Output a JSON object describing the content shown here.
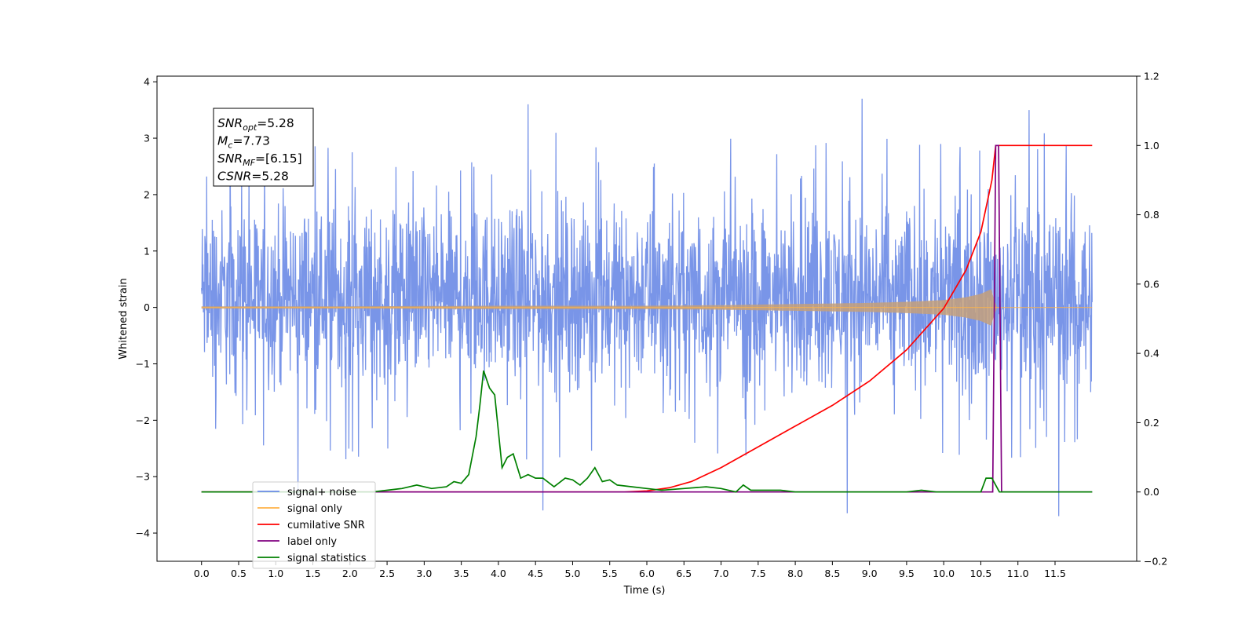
{
  "chart_data": {
    "type": "line",
    "xlabel": "Time (s)",
    "ylabel": "Whitened strain",
    "xlim": [
      -0.6,
      12.6
    ],
    "ylim": [
      -4.5,
      4.1
    ],
    "y2lim": [
      -0.2,
      1.2
    ],
    "x_ticks": [
      "0.0",
      "0.5",
      "1.0",
      "1.5",
      "2.0",
      "2.5",
      "3.0",
      "3.5",
      "4.0",
      "4.5",
      "5.0",
      "5.5",
      "6.0",
      "6.5",
      "7.0",
      "7.5",
      "8.0",
      "8.5",
      "9.0",
      "9.5",
      "10.0",
      "10.5",
      "11.0",
      "11.5"
    ],
    "y_ticks": [
      "4",
      "3",
      "2",
      "1",
      "0",
      "−1",
      "−2",
      "−3",
      "−4"
    ],
    "y2_ticks": [
      "1.2",
      "1.0",
      "0.8",
      "0.6",
      "0.4",
      "0.2",
      "0.0",
      "−0.2"
    ],
    "legend_position": "lower-left",
    "series": [
      {
        "name": "signal+ noise",
        "axis": "left",
        "color": "#6a8ae6",
        "style": "noise",
        "x_range": [
          0.0,
          12.0
        ],
        "typical_range": [
          -1.8,
          2.2
        ],
        "extrema": [
          [
            4.4,
            3.6
          ],
          [
            8.9,
            3.7
          ],
          [
            11.15,
            3.5
          ],
          [
            11.55,
            -3.7
          ],
          [
            8.7,
            -3.65
          ],
          [
            4.6,
            -3.6
          ],
          [
            1.3,
            -3.3
          ]
        ]
      },
      {
        "name": "signal only",
        "axis": "left",
        "color": "#ffb347",
        "style": "chirp",
        "x": [
          0.0,
          2.0,
          4.0,
          6.0,
          7.0,
          8.0,
          9.0,
          9.5,
          10.0,
          10.3,
          10.5,
          10.65,
          10.7,
          12.0
        ],
        "envelope": [
          0.02,
          0.02,
          0.03,
          0.03,
          0.04,
          0.06,
          0.08,
          0.1,
          0.13,
          0.18,
          0.24,
          0.33,
          0.0,
          0.0
        ]
      },
      {
        "name": "cumilative SNR",
        "axis": "right",
        "color": "#ff0000",
        "x": [
          0.0,
          5.7,
          6.0,
          6.3,
          6.6,
          7.0,
          7.5,
          8.0,
          8.5,
          9.0,
          9.5,
          10.0,
          10.3,
          10.5,
          10.65,
          10.7,
          12.0
        ],
        "values": [
          0.0,
          0.0,
          0.003,
          0.012,
          0.03,
          0.07,
          0.13,
          0.19,
          0.25,
          0.32,
          0.41,
          0.53,
          0.64,
          0.75,
          0.9,
          1.0,
          1.0
        ]
      },
      {
        "name": "label only",
        "axis": "right",
        "color": "#800080",
        "x": [
          0.0,
          10.66,
          10.7,
          10.74,
          10.78,
          12.0
        ],
        "values": [
          0.0,
          0.0,
          1.0,
          1.0,
          0.0,
          0.0
        ]
      },
      {
        "name": "signal statistics",
        "axis": "right",
        "color": "#008000",
        "x": [
          0.0,
          2.3,
          2.5,
          2.7,
          2.9,
          3.1,
          3.3,
          3.4,
          3.5,
          3.6,
          3.7,
          3.75,
          3.8,
          3.88,
          3.95,
          4.05,
          4.12,
          4.2,
          4.3,
          4.4,
          4.5,
          4.6,
          4.75,
          4.9,
          5.0,
          5.1,
          5.2,
          5.3,
          5.4,
          5.5,
          5.6,
          5.8,
          6.0,
          6.2,
          6.5,
          6.8,
          7.0,
          7.2,
          7.3,
          7.4,
          7.6,
          7.8,
          8.0,
          8.5,
          9.0,
          9.5,
          9.7,
          9.9,
          10.2,
          10.5,
          10.57,
          10.65,
          10.75,
          11.0,
          12.0
        ],
        "values": [
          0.0,
          0.0,
          0.005,
          0.01,
          0.02,
          0.01,
          0.015,
          0.03,
          0.025,
          0.05,
          0.16,
          0.25,
          0.35,
          0.3,
          0.28,
          0.07,
          0.1,
          0.11,
          0.04,
          0.05,
          0.04,
          0.04,
          0.015,
          0.04,
          0.035,
          0.02,
          0.04,
          0.07,
          0.03,
          0.035,
          0.02,
          0.015,
          0.01,
          0.005,
          0.01,
          0.015,
          0.01,
          0.0,
          0.02,
          0.005,
          0.005,
          0.005,
          0.0,
          0.0,
          0.0,
          0.0,
          0.005,
          0.0,
          0.0,
          0.0,
          0.04,
          0.04,
          0.0,
          0.0,
          0.0
        ]
      }
    ],
    "annotation": [
      {
        "base": "SNR",
        "sub": "opt",
        "value": "=5.28"
      },
      {
        "base": "M",
        "sub": "c",
        "value": "=7.73"
      },
      {
        "base": "SNR",
        "sub": "MF",
        "value": "=[6.15]"
      },
      {
        "base": "CSNR",
        "sub": "",
        "value": "=5.28"
      }
    ]
  }
}
